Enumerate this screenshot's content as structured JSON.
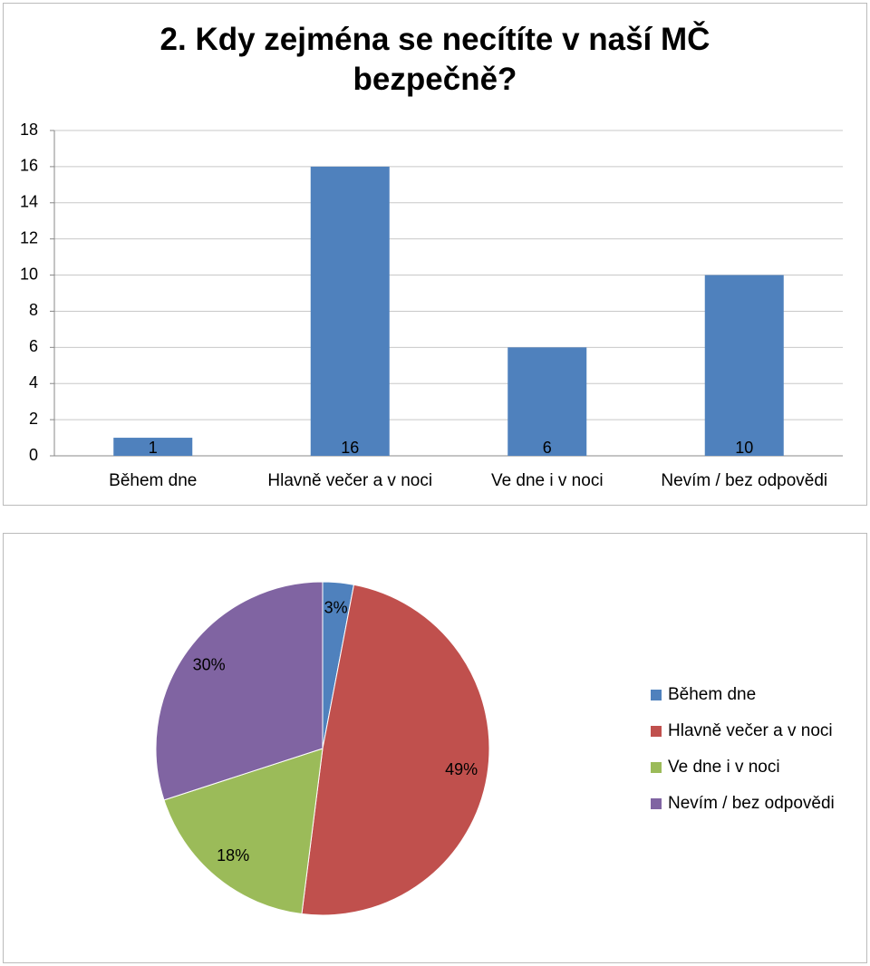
{
  "chart_data": [
    {
      "type": "bar",
      "title": "2. Kdy zejména se necítíte v naší MČ bezpečně?",
      "categories": [
        "Během dne",
        "Hlavně večer a v noci",
        "Ve dne i v noci",
        "Nevím / bez odpovědi"
      ],
      "values": [
        1,
        16,
        6,
        10
      ],
      "color": "#4f81bd",
      "ylim": [
        0,
        18
      ],
      "yticks": [
        0,
        2,
        4,
        6,
        8,
        10,
        12,
        14,
        16,
        18
      ],
      "grid": true
    },
    {
      "type": "pie",
      "categories": [
        "Během dne",
        "Hlavně večer a v noci",
        "Ve dne i v noci",
        "Nevím / bez odpovědi"
      ],
      "values": [
        3,
        49,
        18,
        30
      ],
      "value_labels": [
        "3%",
        "49%",
        "18%",
        "30%"
      ],
      "colors": [
        "#4f81bd",
        "#c0504d",
        "#9bbb59",
        "#8064a2"
      ],
      "legend": "right"
    }
  ]
}
